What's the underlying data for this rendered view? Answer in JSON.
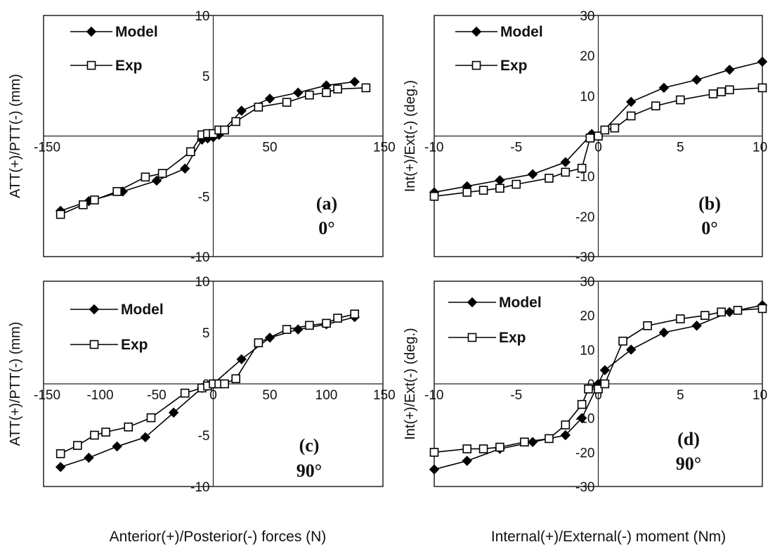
{
  "chart_data": [
    {
      "type": "line",
      "xlim": [
        -150,
        150
      ],
      "ylim": [
        -10,
        10
      ],
      "xticks": [
        -150,
        50,
        150
      ],
      "xtick_labels": [
        "-150",
        "50",
        "150"
      ],
      "yticks": [
        -10,
        -5,
        0,
        5,
        10
      ],
      "ylabel": "ATT(+)/PTT(-)  (mm)",
      "annotation": "(a)",
      "angle": "0°",
      "legend_position": "top-left",
      "series": [
        {
          "name": "Model",
          "marker": "diamond-filled",
          "x": [
            -135,
            -110,
            -80,
            -50,
            -25,
            -10,
            -5,
            0,
            5,
            25,
            50,
            75,
            100,
            125
          ],
          "y": [
            -6.2,
            -5.4,
            -4.6,
            -3.7,
            -2.7,
            -0.3,
            -0.2,
            -0.1,
            0.1,
            2.1,
            3.1,
            3.6,
            4.2,
            4.5
          ]
        },
        {
          "name": "Exp",
          "marker": "square-open",
          "x": [
            -135,
            -115,
            -105,
            -85,
            -60,
            -45,
            -20,
            -10,
            -5,
            0,
            5,
            10,
            20,
            40,
            65,
            85,
            100,
            110,
            135
          ],
          "y": [
            -6.5,
            -5.7,
            -5.3,
            -4.6,
            -3.4,
            -3.1,
            -1.3,
            0.1,
            0.2,
            0.2,
            0.5,
            0.5,
            1.2,
            2.4,
            2.8,
            3.4,
            3.6,
            3.9,
            4.0
          ]
        }
      ]
    },
    {
      "type": "line",
      "xlim": [
        -10,
        10
      ],
      "ylim": [
        -30,
        30
      ],
      "xticks": [
        -10,
        -5,
        0,
        5,
        10
      ],
      "yticks": [
        -30,
        -20,
        -10,
        0,
        10,
        20,
        30
      ],
      "ylabel": "Int(+)/Ext(-) (deg.)",
      "annotation": "(b)",
      "angle": "0°",
      "legend_position": "top-left",
      "series": [
        {
          "name": "Model",
          "marker": "diamond-filled",
          "x": [
            -10,
            -8,
            -6,
            -4,
            -2,
            -0.4,
            0,
            2,
            4,
            6,
            8,
            10
          ],
          "y": [
            -14,
            -12.5,
            -11,
            -9.5,
            -6.5,
            0.5,
            0,
            8.5,
            12,
            14,
            16.5,
            18.5
          ],
          "extra_segments": []
        },
        {
          "name": "Exp",
          "marker": "square-open",
          "x": [
            -10,
            -8,
            -7,
            -6,
            -5,
            -3,
            -2,
            -1,
            -0.5,
            0,
            0.4,
            1,
            2,
            3.5,
            5,
            7,
            7.5,
            8,
            10
          ],
          "y": [
            -15,
            -14,
            -13.5,
            -13,
            -12,
            -10.5,
            -9,
            -8,
            -0.5,
            0,
            1.5,
            2,
            5,
            7.5,
            9,
            10.5,
            11,
            11.5,
            12
          ]
        }
      ]
    },
    {
      "type": "line",
      "xlim": [
        -150,
        150
      ],
      "ylim": [
        -10,
        10
      ],
      "xticks": [
        -150,
        -100,
        -50,
        0,
        50,
        100,
        150
      ],
      "yticks": [
        -10,
        -5,
        0,
        5,
        10
      ],
      "ylabel": "ATT(+)/PTT(-)  (mm)",
      "annotation": "(c)",
      "angle": "90°",
      "legend_position": "top-left",
      "series": [
        {
          "name": "Model",
          "marker": "diamond-filled",
          "x": [
            -135,
            -110,
            -85,
            -60,
            -35,
            -10,
            -5,
            0,
            25,
            50,
            75,
            100,
            125
          ],
          "y": [
            -8.1,
            -7.2,
            -6.1,
            -5.2,
            -2.8,
            -0.4,
            -0.2,
            0.0,
            2.4,
            4.5,
            5.3,
            5.8,
            6.5
          ],
          "extra_segments": []
        },
        {
          "name": "Exp",
          "marker": "square-open",
          "x": [
            -135,
            -120,
            -105,
            -95,
            -75,
            -55,
            -25,
            -10,
            -5,
            0,
            5,
            10,
            20,
            40,
            65,
            85,
            100,
            110,
            125
          ],
          "y": [
            -6.8,
            -6.0,
            -5.0,
            -4.7,
            -4.2,
            -3.3,
            -0.9,
            -0.4,
            -0.2,
            0.0,
            0.0,
            0.0,
            0.5,
            4.0,
            5.3,
            5.7,
            5.9,
            6.4,
            6.8
          ]
        }
      ]
    },
    {
      "type": "line",
      "xlim": [
        -10,
        10
      ],
      "ylim": [
        -30,
        30
      ],
      "xticks": [
        -10,
        -5,
        0,
        5,
        10
      ],
      "yticks": [
        -30,
        -20,
        -10,
        0,
        10,
        20,
        30
      ],
      "ylabel": "Int(+)/Ext(-) (deg.)",
      "annotation": "(d)",
      "angle": "90°",
      "legend_position": "top-left",
      "series": [
        {
          "name": "Model",
          "marker": "diamond-filled",
          "x": [
            -10,
            -8,
            -6,
            -4,
            -2,
            -1,
            0,
            0.4,
            2,
            4,
            6,
            8,
            10
          ],
          "y": [
            -25,
            -22.5,
            -19,
            -17,
            -15,
            -10,
            0,
            4,
            10,
            15,
            17,
            21,
            23
          ]
        },
        {
          "name": "Exp",
          "marker": "square-open",
          "x": [
            -10,
            -8,
            -7,
            -6,
            -4.5,
            -3,
            -2,
            -1,
            -0.6,
            0,
            0.4,
            1.5,
            3,
            5,
            6.5,
            7.5,
            8.5,
            10
          ],
          "y": [
            -20,
            -19,
            -19,
            -18.5,
            -17,
            -16,
            -12,
            -6,
            -1.5,
            -1.5,
            0,
            12.5,
            17,
            19,
            20,
            21,
            21.5,
            22
          ]
        }
      ]
    }
  ],
  "xlabels": [
    "Anterior(+)/Posterior(-) forces (N)",
    "Internal(+)/External(-) moment (Nm)"
  ],
  "legend": {
    "model": "Model",
    "exp": "Exp"
  }
}
